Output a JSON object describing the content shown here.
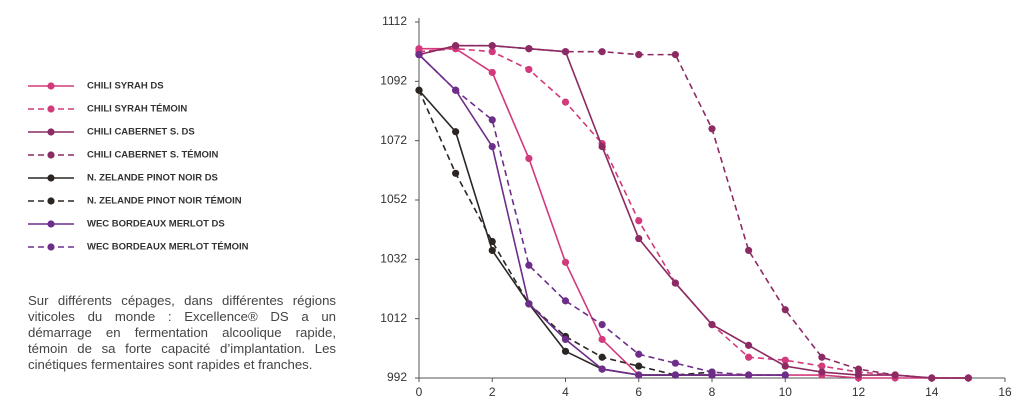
{
  "chart_data": {
    "type": "line",
    "description": "Sur différents cépages, dans différentes régions viticoles du monde : Excellence® DS a un démarrage en fermentation alcoolique rapide, témoin de sa forte capacité d’implantation. Les cinétiques fermentaires sont rapides et franches.",
    "xlim": [
      0,
      16
    ],
    "xticks": [
      0,
      2,
      4,
      6,
      8,
      10,
      12,
      14,
      16
    ],
    "ylim": [
      992,
      1112
    ],
    "yticks": [
      992,
      1012,
      1032,
      1052,
      1072,
      1092,
      1112
    ],
    "grid": false,
    "legend": "left",
    "series": [
      {
        "name": "CHILI SYRAH DS",
        "color": "#d23a7c",
        "dashed": false,
        "x": [
          0,
          1,
          2,
          3,
          4,
          5,
          6,
          7,
          8,
          9,
          10,
          11,
          12,
          13,
          14,
          15
        ],
        "values": [
          1103,
          1103,
          1095,
          1066,
          1031,
          1005,
          993,
          993,
          993,
          993,
          993,
          993,
          992,
          992,
          992,
          992
        ]
      },
      {
        "name": "CHILI SYRAH TÉMOIN",
        "color": "#d23a7c",
        "dashed": true,
        "x": [
          0,
          1,
          2,
          3,
          4,
          5,
          6,
          7,
          8,
          9,
          10,
          11,
          12,
          13,
          14,
          15
        ],
        "values": [
          1102,
          1103,
          1102,
          1096,
          1085,
          1071,
          1045,
          1024,
          1010,
          999,
          998,
          996,
          994,
          993,
          992,
          992
        ]
      },
      {
        "name": "CHILI CABERNET S. DS",
        "color": "#8c2b63",
        "dashed": false,
        "x": [
          0,
          1,
          2,
          3,
          4,
          5,
          6,
          7,
          8,
          9,
          10,
          11,
          12,
          13,
          14,
          15
        ],
        "values": [
          1101,
          1104,
          1104,
          1103,
          1102,
          1070,
          1039,
          1024,
          1010,
          1003,
          996,
          994,
          993,
          993,
          992,
          992
        ]
      },
      {
        "name": "CHILI CABERNET S. TÉMOIN",
        "color": "#8c2b63",
        "dashed": true,
        "x": [
          0,
          1,
          2,
          3,
          4,
          5,
          6,
          7,
          8,
          9,
          10,
          11,
          12,
          13,
          14,
          15
        ],
        "values": [
          1101,
          1104,
          1104,
          1103,
          1102,
          1102,
          1101,
          1101,
          1076,
          1035,
          1015,
          999,
          995,
          993,
          992,
          992
        ]
      },
      {
        "name": "N. ZELANDE PINOT NOIR DS",
        "color": "#2b2624",
        "dashed": false,
        "x": [
          0,
          1,
          2,
          3,
          4,
          5,
          6,
          7,
          8
        ],
        "values": [
          1089,
          1075,
          1035,
          1017,
          1001,
          995,
          993,
          993,
          993
        ]
      },
      {
        "name": "N. ZELANDE PINOT NOIR TÉMOIN",
        "color": "#2b2624",
        "dashed": true,
        "x": [
          0,
          1,
          2,
          3,
          4,
          5,
          6,
          7,
          8
        ],
        "values": [
          1089,
          1061,
          1038,
          1017,
          1006,
          999,
          996,
          993,
          994
        ]
      },
      {
        "name": "WEC BORDEAUX MERLOT DS",
        "color": "#6d2e8a",
        "dashed": false,
        "x": [
          0,
          1,
          2,
          3,
          4,
          5,
          6,
          7,
          8,
          9,
          10
        ],
        "values": [
          1101,
          1089,
          1070,
          1017,
          1005,
          995,
          993,
          993,
          993,
          993,
          993
        ]
      },
      {
        "name": "WEC BORDEAUX MERLOT TÉMOIN",
        "color": "#6d2e8a",
        "dashed": true,
        "x": [
          0,
          1,
          2,
          3,
          4,
          5,
          6,
          7,
          8,
          9,
          10
        ],
        "values": [
          1101,
          1089,
          1079,
          1030,
          1018,
          1010,
          1000,
          997,
          994,
          993,
          993
        ]
      }
    ]
  }
}
